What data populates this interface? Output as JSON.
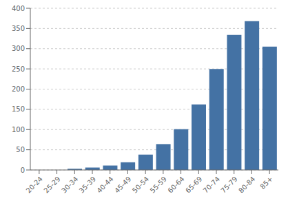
{
  "chart_data": {
    "type": "bar",
    "categories": [
      "20-24",
      "25-29",
      "30-34",
      "35-39",
      "40-44",
      "45-49",
      "50-54",
      "55-59",
      "60-64",
      "65-69",
      "70-74",
      "75-79",
      "80-84",
      "85+"
    ],
    "values": [
      0,
      0,
      3,
      6,
      11,
      19,
      38,
      64,
      101,
      162,
      250,
      334,
      368,
      305
    ],
    "color": "#4472a4",
    "ylim": [
      0,
      400
    ],
    "yticks": [
      0,
      50,
      100,
      150,
      200,
      250,
      300,
      350,
      400
    ],
    "grid": true
  }
}
